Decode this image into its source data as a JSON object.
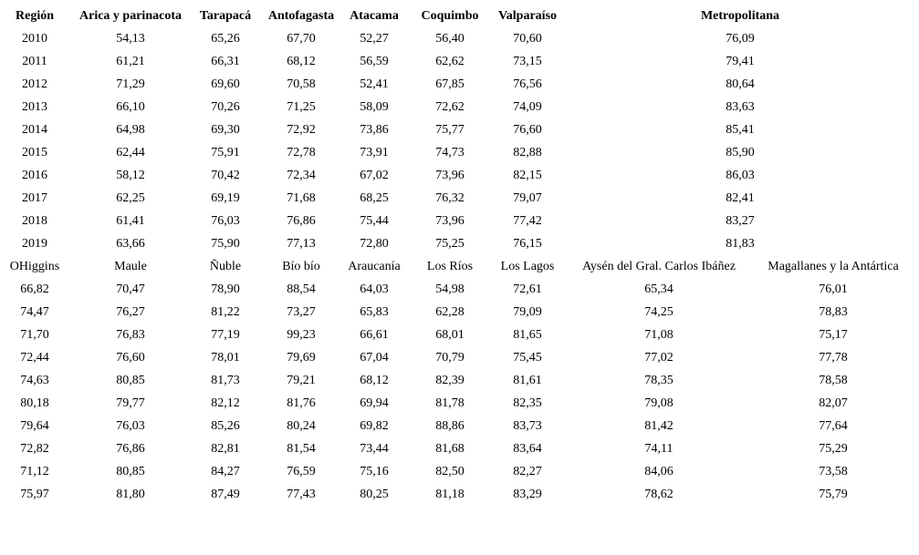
{
  "table1": {
    "header": [
      "Región",
      "Arica y parinacota",
      "Tarapacá",
      "Antofagasta",
      "Atacama",
      "Coquimbo",
      "Valparaíso",
      "Metropolitana"
    ],
    "rows": [
      [
        2010,
        "54,13",
        "65,26",
        "67,70",
        "52,27",
        "56,40",
        "70,60",
        "76,09"
      ],
      [
        2011,
        "61,21",
        "66,31",
        "68,12",
        "56,59",
        "62,62",
        "73,15",
        "79,41"
      ],
      [
        2012,
        "71,29",
        "69,60",
        "70,58",
        "52,41",
        "67,85",
        "76,56",
        "80,64"
      ],
      [
        2013,
        "66,10",
        "70,26",
        "71,25",
        "58,09",
        "72,62",
        "74,09",
        "83,63"
      ],
      [
        2014,
        "64,98",
        "69,30",
        "72,92",
        "73,86",
        "75,77",
        "76,60",
        "85,41"
      ],
      [
        2015,
        "62,44",
        "75,91",
        "72,78",
        "73,91",
        "74,73",
        "82,88",
        "85,90"
      ],
      [
        2016,
        "58,12",
        "70,42",
        "72,34",
        "67,02",
        "73,96",
        "82,15",
        "86,03"
      ],
      [
        2017,
        "62,25",
        "69,19",
        "71,68",
        "68,25",
        "76,32",
        "79,07",
        "82,41"
      ],
      [
        2018,
        "61,41",
        "76,03",
        "76,86",
        "75,44",
        "73,96",
        "77,42",
        "83,27"
      ],
      [
        2019,
        "63,66",
        "75,90",
        "77,13",
        "72,80",
        "75,25",
        "76,15",
        "81,83"
      ]
    ]
  },
  "table2": {
    "header": [
      "OHiggins",
      "Maule",
      "Ñuble",
      "Bío bío",
      "Araucanía",
      "Los Ríos",
      "Los Lagos",
      "Aysén del Gral. Carlos Ibáñez",
      "Magallanes y la Antártica"
    ],
    "rows": [
      [
        "66,82",
        "70,47",
        "78,90",
        "88,54",
        "64,03",
        "54,98",
        "72,61",
        "65,34",
        "76,01"
      ],
      [
        "74,47",
        "76,27",
        "81,22",
        "73,27",
        "65,83",
        "62,28",
        "79,09",
        "74,25",
        "78,83"
      ],
      [
        "71,70",
        "76,83",
        "77,19",
        "99,23",
        "66,61",
        "68,01",
        "81,65",
        "71,08",
        "75,17"
      ],
      [
        "72,44",
        "76,60",
        "78,01",
        "79,69",
        "67,04",
        "70,79",
        "75,45",
        "77,02",
        "77,78"
      ],
      [
        "74,63",
        "80,85",
        "81,73",
        "79,21",
        "68,12",
        "82,39",
        "81,61",
        "78,35",
        "78,58"
      ],
      [
        "80,18",
        "79,77",
        "82,12",
        "81,76",
        "69,94",
        "81,78",
        "82,35",
        "79,08",
        "82,07"
      ],
      [
        "79,64",
        "76,03",
        "85,26",
        "80,24",
        "69,82",
        "88,86",
        "83,73",
        "81,42",
        "77,64"
      ],
      [
        "72,82",
        "76,86",
        "82,81",
        "81,54",
        "73,44",
        "81,68",
        "83,64",
        "74,11",
        "75,29"
      ],
      [
        "71,12",
        "80,85",
        "84,27",
        "76,59",
        "75,16",
        "82,50",
        "82,27",
        "84,06",
        "73,58"
      ],
      [
        "75,97",
        "81,80",
        "87,49",
        "77,43",
        "80,25",
        "81,18",
        "83,29",
        "78,62",
        "75,79"
      ]
    ]
  }
}
